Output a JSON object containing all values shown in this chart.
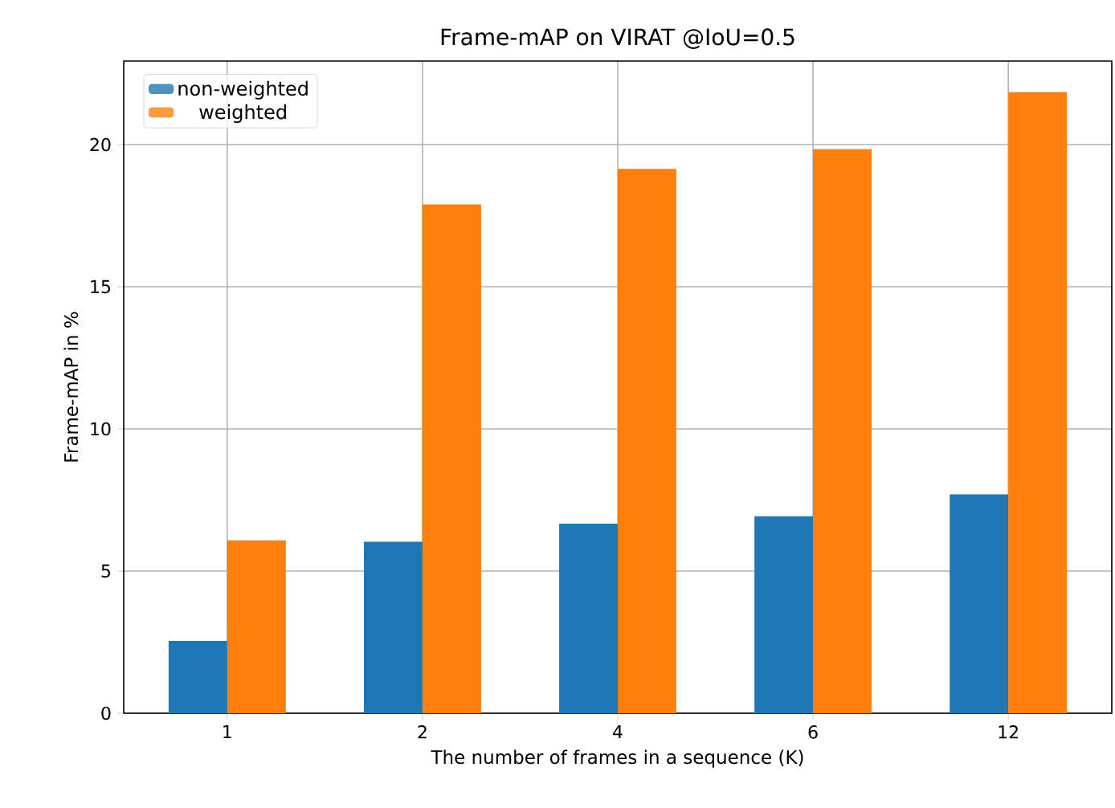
{
  "chart_data": {
    "type": "bar",
    "title": "Frame-mAP on VIRAT @IoU=0.5",
    "xlabel": "The number of frames in a sequence (K)",
    "ylabel": "Frame-mAP in %",
    "categories": [
      "1",
      "2",
      "4",
      "6",
      "12"
    ],
    "series": [
      {
        "name": "non-weighted",
        "color": "#1f77b4",
        "values": [
          2.54,
          6.03,
          6.67,
          6.93,
          7.7
        ]
      },
      {
        "name": "weighted",
        "color": "#ff7f0e",
        "values": [
          6.08,
          17.9,
          19.15,
          19.84,
          21.85
        ]
      }
    ],
    "ylim": [
      0,
      22.94
    ],
    "yticks": [
      0,
      5,
      10,
      15,
      20
    ],
    "grid": true,
    "legend": "top left"
  }
}
